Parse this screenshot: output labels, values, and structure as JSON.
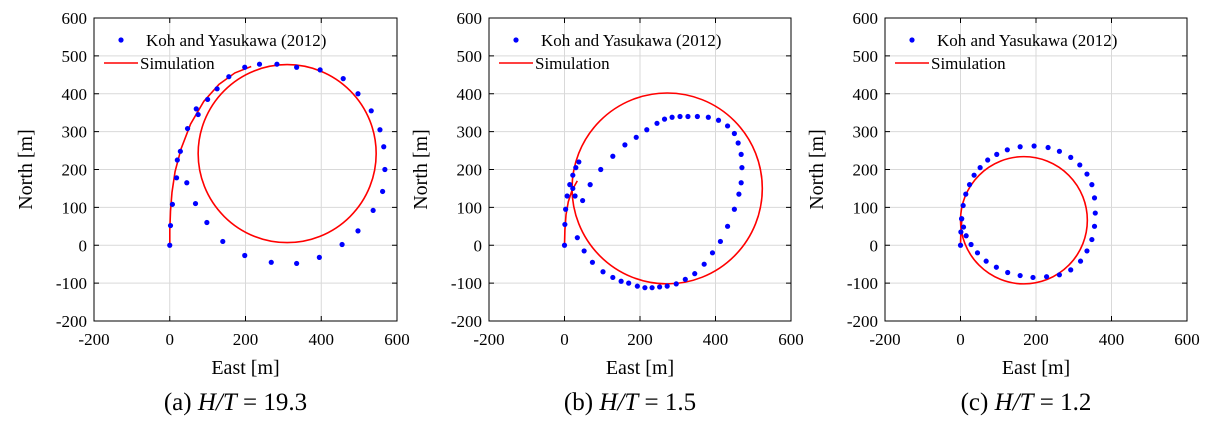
{
  "colors": {
    "points": "#0000ff",
    "line": "#ff0000",
    "grid": "#d9d9d9",
    "axis": "#000000"
  },
  "chart_data": [
    {
      "type": "scatter",
      "caption_prefix": "(a) ",
      "caption_math": "H/T",
      "caption_value": " = 19.3",
      "xlabel": "East [m]",
      "ylabel": "North [m]",
      "xlim": [
        -200,
        600
      ],
      "ylim": [
        -200,
        600
      ],
      "xticks": [
        -200,
        0,
        200,
        400,
        600
      ],
      "yticks": [
        -200,
        -100,
        0,
        100,
        200,
        300,
        400,
        500,
        600
      ],
      "grid": true,
      "legend_position": "top-left",
      "series": [
        {
          "name": "Koh and Yasukawa (2012)",
          "kind": "points",
          "x": [
            0,
            2,
            7,
            18,
            28,
            47,
            70,
            75,
            100,
            125,
            156,
            198,
            237,
            283,
            335,
            397,
            458,
            497,
            532,
            555,
            565,
            568,
            562,
            537,
            497,
            455,
            395,
            335,
            268,
            198,
            140,
            98,
            68,
            45,
            20
          ],
          "y": [
            0,
            52,
            108,
            178,
            248,
            308,
            360,
            345,
            385,
            413,
            445,
            470,
            478,
            478,
            470,
            463,
            440,
            400,
            355,
            305,
            260,
            200,
            142,
            92,
            38,
            2,
            -32,
            -48,
            -45,
            -27,
            10,
            60,
            110,
            165,
            225
          ]
        },
        {
          "name": "Simulation",
          "kind": "line",
          "x": [
            0,
            0,
            2,
            6,
            14,
            30,
            55,
            90,
            130,
            172,
            215
          ],
          "y": [
            0,
            40,
            90,
            140,
            195,
            255,
            320,
            380,
            425,
            455,
            472
          ],
          "circle": {
            "cx": 310,
            "cy": 242,
            "r": 235
          }
        }
      ]
    },
    {
      "type": "scatter",
      "caption_prefix": "(b) ",
      "caption_math": "H/T",
      "caption_value": " = 1.5",
      "xlabel": "East [m]",
      "ylabel": "North [m]",
      "xlim": [
        -200,
        600
      ],
      "ylim": [
        -200,
        600
      ],
      "xticks": [
        -200,
        0,
        200,
        400,
        600
      ],
      "yticks": [
        -200,
        -100,
        0,
        100,
        200,
        300,
        400,
        500,
        600
      ],
      "grid": true,
      "legend_position": "top-left",
      "series": [
        {
          "name": "Koh and Yasukawa (2012)",
          "kind": "points",
          "x": [
            0,
            1,
            3,
            7,
            14,
            22,
            30,
            38,
            28,
            22,
            34,
            52,
            74,
            102,
            128,
            150,
            170,
            193,
            213,
            232,
            252,
            272,
            296,
            320,
            345,
            370,
            392,
            413,
            432,
            450,
            462,
            468,
            470,
            468,
            460,
            450,
            432,
            408,
            381,
            352,
            327,
            306,
            285,
            265,
            245,
            218,
            190,
            160,
            128,
            96,
            68,
            48
          ],
          "y": [
            0,
            55,
            95,
            130,
            160,
            185,
            205,
            220,
            130,
            150,
            20,
            -15,
            -45,
            -70,
            -85,
            -95,
            -100,
            -108,
            -112,
            -112,
            -110,
            -108,
            -102,
            -90,
            -75,
            -50,
            -20,
            10,
            50,
            95,
            135,
            165,
            205,
            240,
            270,
            295,
            315,
            330,
            338,
            340,
            340,
            340,
            338,
            333,
            322,
            305,
            285,
            265,
            235,
            200,
            160,
            118
          ]
        },
        {
          "name": "Simulation",
          "kind": "line",
          "x": [
            0,
            1,
            4,
            10,
            20,
            34
          ],
          "y": [
            0,
            40,
            80,
            115,
            145,
            170
          ],
          "circle": {
            "cx": 272,
            "cy": 150,
            "r": 252
          }
        }
      ]
    },
    {
      "type": "scatter",
      "caption_prefix": "(c) ",
      "caption_math": "H/T",
      "caption_value": " = 1.2",
      "xlabel": "East [m]",
      "ylabel": "North [m]",
      "xlim": [
        -200,
        600
      ],
      "ylim": [
        -200,
        600
      ],
      "xticks": [
        -200,
        0,
        200,
        400,
        600
      ],
      "yticks": [
        -200,
        -100,
        0,
        100,
        200,
        300,
        400,
        500,
        600
      ],
      "grid": true,
      "legend_position": "top-left",
      "series": [
        {
          "name": "Koh and Yasukawa (2012)",
          "kind": "points",
          "x": [
            0,
            1,
            3,
            7,
            14,
            24,
            36,
            52,
            72,
            96,
            124,
            158,
            195,
            232,
            262,
            292,
            316,
            335,
            348,
            355,
            357,
            355,
            348,
            335,
            318,
            292,
            262,
            228,
            192,
            158,
            125,
            95,
            68,
            45,
            28,
            15,
            8,
            3
          ],
          "y": [
            0,
            35,
            70,
            105,
            135,
            160,
            185,
            205,
            225,
            240,
            252,
            260,
            262,
            258,
            248,
            232,
            212,
            188,
            160,
            125,
            85,
            50,
            15,
            -15,
            -42,
            -65,
            -78,
            -83,
            -85,
            -80,
            -72,
            -58,
            -42,
            -20,
            2,
            25,
            48,
            70
          ]
        },
        {
          "name": "Simulation",
          "kind": "line",
          "x": [
            0,
            1,
            4
          ],
          "y": [
            0,
            40,
            70
          ],
          "circle": {
            "cx": 168,
            "cy": 66,
            "r": 168
          }
        }
      ]
    }
  ]
}
